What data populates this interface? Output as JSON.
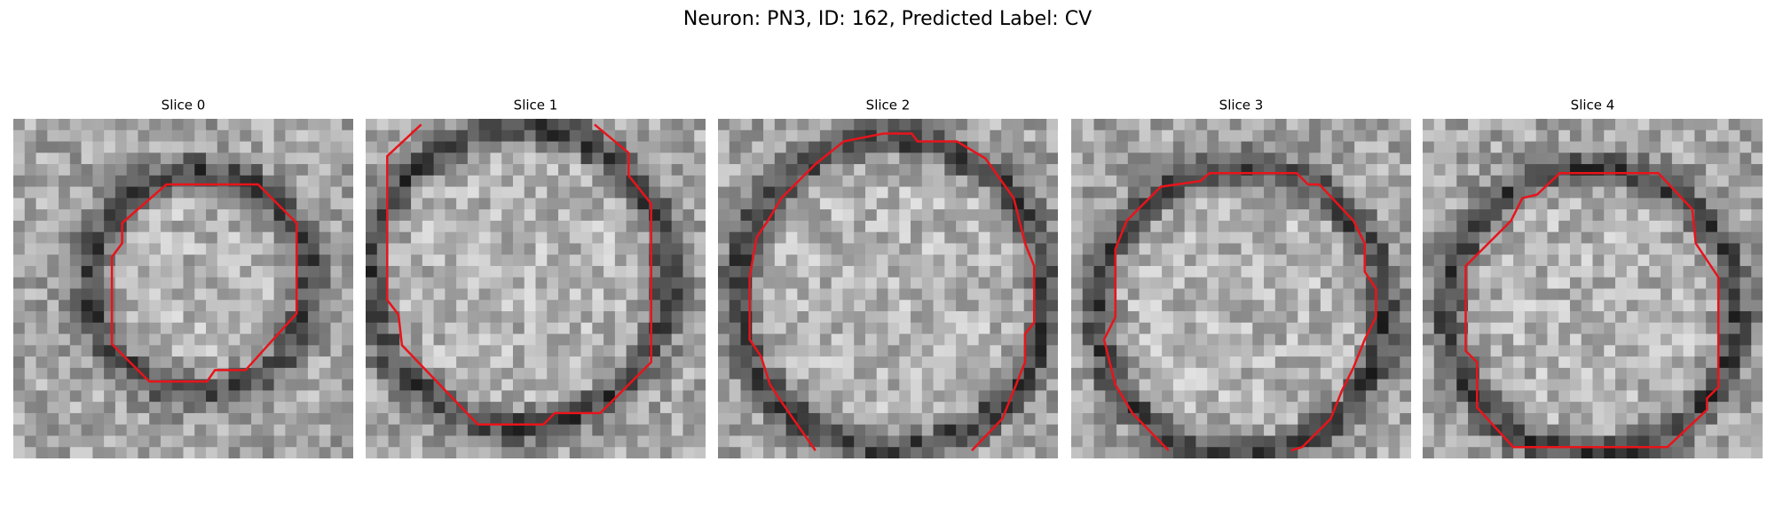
{
  "header": {
    "title": "Neuron: PN3, ID: 162, Predicted Label: CV"
  },
  "panels": [
    {
      "label": "Slice 0"
    },
    {
      "label": "Slice 1"
    },
    {
      "label": "Slice 2"
    },
    {
      "label": "Slice 3"
    },
    {
      "label": "Slice 4"
    }
  ]
}
